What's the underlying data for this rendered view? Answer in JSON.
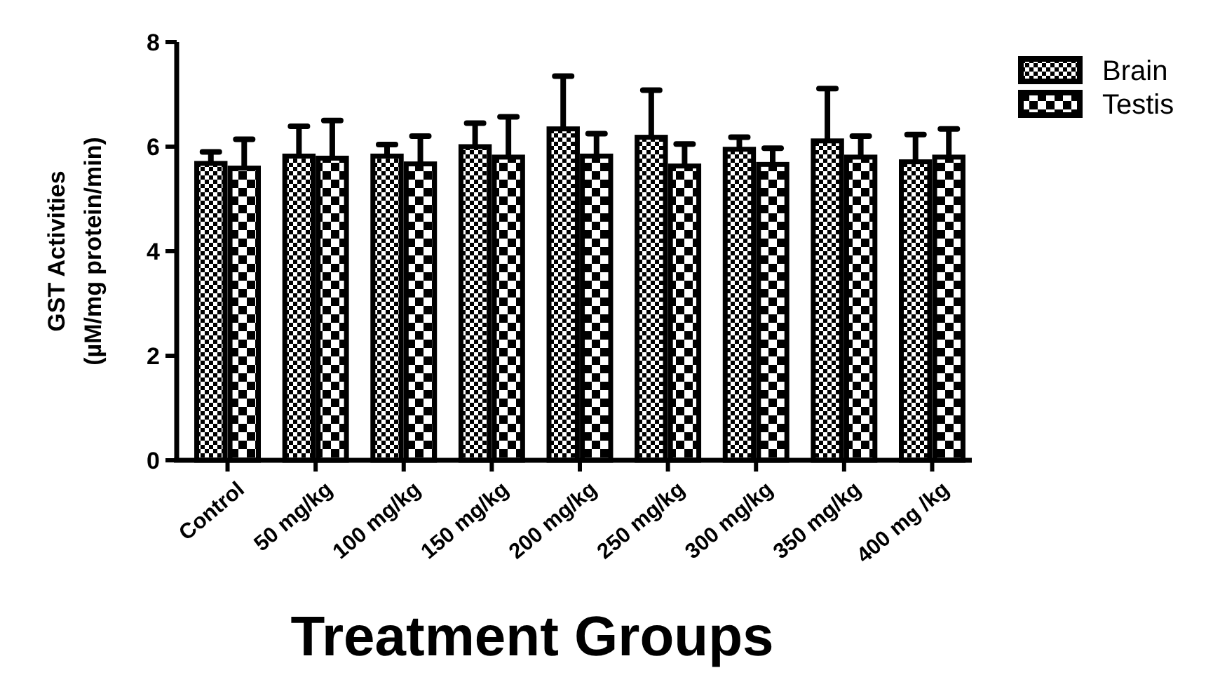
{
  "chart_data": {
    "type": "bar",
    "xlabel": "Treatment Groups",
    "ylabel": "GST Activities\n(µM/mg protein/min)",
    "categories": [
      "Control",
      "50 mg/kg",
      "100 mg/kg",
      "150 mg/kg",
      "200 mg/kg",
      "250 mg/kg",
      "300 mg/kg",
      "350 mg/kg",
      "400 mg /kg"
    ],
    "series": [
      {
        "name": "Brain",
        "color": "#000000",
        "values": [
          5.68,
          5.82,
          5.82,
          6.0,
          6.34,
          6.18,
          5.95,
          6.11,
          5.71
        ],
        "errors": [
          [
            5.68,
            5.9
          ],
          [
            5.82,
            6.39
          ],
          [
            5.82,
            6.04
          ],
          [
            6.0,
            6.45
          ],
          [
            6.34,
            7.35
          ],
          [
            6.18,
            7.08
          ],
          [
            5.95,
            6.18
          ],
          [
            6.11,
            7.11
          ],
          [
            5.71,
            6.23
          ]
        ]
      },
      {
        "name": "Testis",
        "color": "#000000",
        "values": [
          5.59,
          5.78,
          5.67,
          5.8,
          5.82,
          5.63,
          5.66,
          5.8,
          5.8
        ],
        "errors": [
          [
            5.59,
            6.14
          ],
          [
            5.78,
            6.5
          ],
          [
            5.67,
            6.2
          ],
          [
            5.8,
            6.57
          ],
          [
            5.82,
            6.25
          ],
          [
            5.63,
            6.05
          ],
          [
            5.66,
            5.97
          ],
          [
            5.8,
            6.2
          ],
          [
            5.8,
            6.34
          ]
        ]
      }
    ],
    "ylim": [
      0,
      8
    ],
    "yticks": [
      0,
      2,
      4,
      6,
      8
    ],
    "grid": false,
    "legend": "top right"
  }
}
